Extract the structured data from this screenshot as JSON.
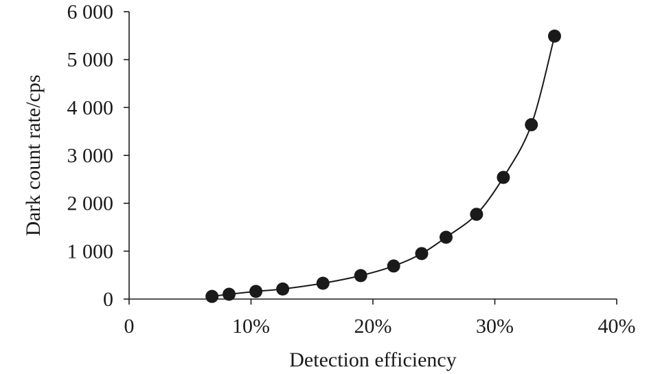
{
  "chart_data": {
    "type": "scatter",
    "title": "",
    "xlabel": "Detection efficiency",
    "ylabel": "Dark count rate/cps",
    "xlim": [
      0,
      40
    ],
    "ylim": [
      0,
      6000
    ],
    "x_ticks": [
      0,
      10,
      20,
      30,
      40
    ],
    "x_tick_labels": [
      "0",
      "10%",
      "20%",
      "30%",
      "40%"
    ],
    "y_ticks": [
      0,
      1000,
      2000,
      3000,
      4000,
      5000,
      6000
    ],
    "y_tick_labels": [
      "0",
      "1 000",
      "2 000",
      "3 000",
      "4 000",
      "5 000",
      "6 000"
    ],
    "grid": false,
    "legend": "none",
    "marker_color": "#1a1a1a",
    "trend_line": "smooth curve through points",
    "series": [
      {
        "x": [
          6.8,
          8.2,
          10.4,
          12.6,
          15.9,
          19.0,
          21.7,
          24.0,
          26.0,
          28.5,
          30.7,
          33.0,
          34.9
        ],
        "y": [
          55,
          100,
          160,
          210,
          330,
          490,
          690,
          950,
          1290,
          1770,
          2540,
          3640,
          5490
        ]
      }
    ]
  }
}
